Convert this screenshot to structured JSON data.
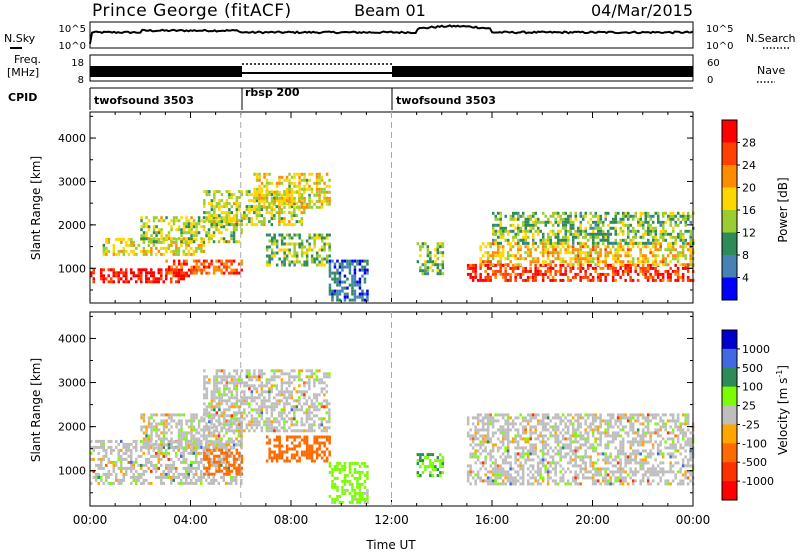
{
  "header": {
    "station": "Prince George (fitACF)",
    "beam": "Beam 01",
    "date": "04/Mar/2015"
  },
  "noise_panel": {
    "left_label": "N.Sky",
    "right_label": "N.Search",
    "ticks_left": [
      "10^5",
      "10^0"
    ],
    "ticks_right": [
      "10^5",
      "10^0"
    ]
  },
  "freq_panel": {
    "left_label_line1": "Freq.",
    "left_label_line2": "[MHz]",
    "ticks_left": [
      "18",
      "8"
    ],
    "ticks_right": [
      "60",
      "0"
    ],
    "right_label": "Nave"
  },
  "cpid_panel": {
    "label": "CPID",
    "segments": [
      {
        "label": "twofsound 3503",
        "start": "00:00",
        "end": "06:00"
      },
      {
        "label": "rbsp 200",
        "start": "06:00",
        "end": "12:00"
      },
      {
        "label": "twofsound 3503",
        "start": "12:00",
        "end": "24:00"
      }
    ]
  },
  "power_colorbar": {
    "label": "Power [dB]",
    "ticks": [
      "28",
      "24",
      "20",
      "16",
      "12",
      "8",
      "4"
    ],
    "colors": [
      "#ff0000",
      "#ff4000",
      "#ff8c00",
      "#ffd700",
      "#9acd32",
      "#2e8b57",
      "#4682b4",
      "#0000ff"
    ]
  },
  "velocity_colorbar": {
    "label": "Velocity [m s",
    "label_sup": "-1",
    "label_end": "]",
    "ticks": [
      "1000",
      "500",
      "100",
      "25",
      "-25",
      "-100",
      "-500",
      "-1000"
    ],
    "colors": [
      "#0000cd",
      "#4169e1",
      "#2e8b57",
      "#7cfc00",
      "#bebebe",
      "#ffa500",
      "#ff6a00",
      "#ff3000",
      "#ff0000"
    ]
  },
  "axes": {
    "ylabel": "Slant Range [km]",
    "yticks": [
      "4000",
      "3000",
      "2000",
      "1000"
    ],
    "xticks": [
      "00:00",
      "04:00",
      "08:00",
      "12:00",
      "16:00",
      "20:00",
      "00:00"
    ],
    "xlabel": "Time UT"
  },
  "chart_data": [
    {
      "type": "heatmap",
      "title": "",
      "xlabel": "Time UT",
      "ylabel": "Slant Range [km]",
      "xlim": [
        0,
        24
      ],
      "ylim": [
        200,
        4600
      ],
      "colorbar": {
        "label": "Power [dB]",
        "range": [
          0,
          30
        ]
      },
      "echo_regions": [
        {
          "t": [
            0,
            4
          ],
          "range": [
            700,
            1000
          ],
          "value": 28
        },
        {
          "t": [
            3,
            6
          ],
          "range": [
            900,
            1200
          ],
          "value": 24
        },
        {
          "t": [
            0.5,
            4.5
          ],
          "range": [
            1300,
            1700
          ],
          "value": 16
        },
        {
          "t": [
            2,
            6
          ],
          "range": [
            1600,
            2200
          ],
          "value": 14
        },
        {
          "t": [
            4.5,
            8.5
          ],
          "range": [
            2000,
            2800
          ],
          "value": 14
        },
        {
          "t": [
            6.5,
            9.5
          ],
          "range": [
            2400,
            3200
          ],
          "value": 16
        },
        {
          "t": [
            7,
            9.5
          ],
          "range": [
            1100,
            1800
          ],
          "value": 12
        },
        {
          "t": [
            9.5,
            11
          ],
          "range": [
            300,
            1200
          ],
          "value": 6
        },
        {
          "t": [
            13,
            14
          ],
          "range": [
            900,
            1600
          ],
          "value": 12
        },
        {
          "t": [
            15,
            24
          ],
          "range": [
            700,
            1100
          ],
          "value": 26
        },
        {
          "t": [
            15.5,
            24
          ],
          "range": [
            1100,
            1600
          ],
          "value": 18
        },
        {
          "t": [
            16,
            24
          ],
          "range": [
            1600,
            2300
          ],
          "value": 12
        }
      ]
    },
    {
      "type": "heatmap",
      "title": "",
      "xlabel": "Time UT",
      "ylabel": "Slant Range [km]",
      "xlim": [
        0,
        24
      ],
      "ylim": [
        200,
        4600
      ],
      "colorbar": {
        "label": "Velocity [m s-1]",
        "range": [
          -1000,
          1000
        ]
      },
      "echo_regions": [
        {
          "t": [
            0,
            6
          ],
          "range": [
            700,
            1700
          ],
          "value": 0
        },
        {
          "t": [
            2,
            6
          ],
          "range": [
            1500,
            2300
          ],
          "value": 0
        },
        {
          "t": [
            4.5,
            9.5
          ],
          "range": [
            1900,
            3300
          ],
          "value": 0
        },
        {
          "t": [
            4.5,
            6
          ],
          "range": [
            900,
            1500
          ],
          "value": -300
        },
        {
          "t": [
            7,
            9.5
          ],
          "range": [
            1200,
            1800
          ],
          "value": -300
        },
        {
          "t": [
            9.5,
            11
          ],
          "range": [
            300,
            1200
          ],
          "value": 50
        },
        {
          "t": [
            13,
            14
          ],
          "range": [
            900,
            1400
          ],
          "value": 100
        },
        {
          "t": [
            15,
            24
          ],
          "range": [
            700,
            2300
          ],
          "value": 0
        }
      ]
    }
  ]
}
